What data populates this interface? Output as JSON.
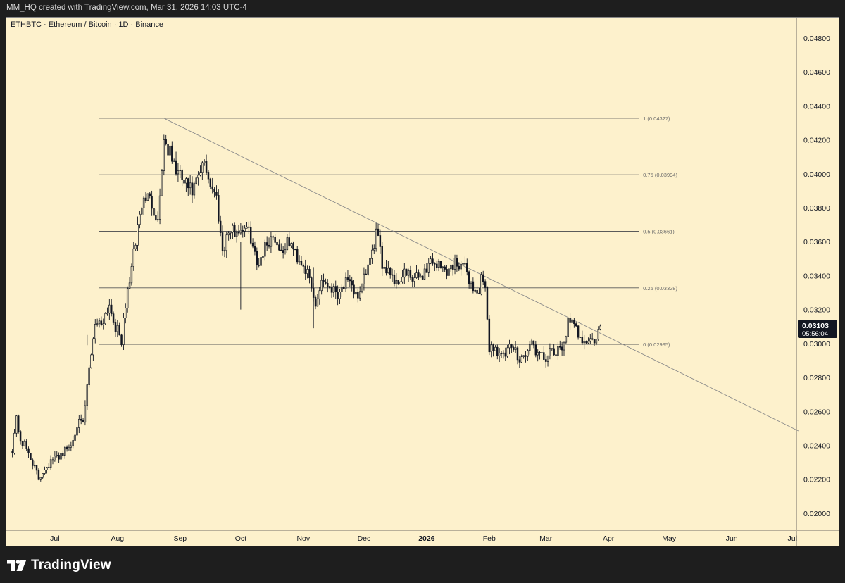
{
  "header": {
    "caption": "MM_HQ created with TradingView.com, Mar 31, 2026 14:03 UTC-4"
  },
  "symbol": {
    "label": "ETHBTC · Ethereum / Bitcoin · 1D · Binance"
  },
  "footer": {
    "brand": "TradingView"
  },
  "chart_data": {
    "type": "candlestick",
    "title": "ETHBTC · Ethereum / Bitcoin · 1D · Binance",
    "ylim": [
      0.019,
      0.0492
    ],
    "y_ticks": [
      "0.02000",
      "0.02200",
      "0.02400",
      "0.02600",
      "0.02800",
      "0.03000",
      "0.03200",
      "0.03400",
      "0.03600",
      "0.03800",
      "0.04000",
      "0.04200",
      "0.04400",
      "0.04600",
      "0.04800"
    ],
    "x_labels": [
      {
        "day": 5,
        "label": "Jul",
        "bold": false
      },
      {
        "day": 36,
        "label": "Aug",
        "bold": false
      },
      {
        "day": 67,
        "label": "Sep",
        "bold": false
      },
      {
        "day": 97,
        "label": "Oct",
        "bold": false
      },
      {
        "day": 128,
        "label": "Nov",
        "bold": false
      },
      {
        "day": 158,
        "label": "Dec",
        "bold": false
      },
      {
        "day": 189,
        "label": "2026",
        "bold": true
      },
      {
        "day": 220,
        "label": "Feb",
        "bold": false
      },
      {
        "day": 248,
        "label": "Mar",
        "bold": false
      },
      {
        "day": 279,
        "label": "Apr",
        "bold": false
      },
      {
        "day": 309,
        "label": "May",
        "bold": false
      },
      {
        "day": 340,
        "label": "Jun",
        "bold": false
      },
      {
        "day": 370,
        "label": "Jul",
        "bold": false
      }
    ],
    "x_range_days": [
      -19,
      372
    ],
    "fib_levels": [
      {
        "level": "1",
        "price": 0.04327,
        "label": "1 (0.04327)"
      },
      {
        "level": "0.75",
        "price": 0.03994,
        "label": "0.75 (0.03994)"
      },
      {
        "level": "0.5",
        "price": 0.03661,
        "label": "0.5 (0.03661)"
      },
      {
        "level": "0.25",
        "price": 0.03328,
        "label": "0.25 (0.03328)"
      },
      {
        "level": "0",
        "price": 0.02995,
        "label": "0 (0.02995)"
      }
    ],
    "fib_start_day": 27,
    "fib_end_day": 294,
    "trendline": {
      "start_day": 59,
      "start_price": 0.04327,
      "end_day": 373,
      "end_price": 0.02485
    },
    "last_price": {
      "value": "0.03103",
      "countdown": "05:56:04"
    },
    "anchors": [
      [
        -16,
        0.0238
      ],
      [
        -14,
        0.0256
      ],
      [
        -12,
        0.0243
      ],
      [
        -9,
        0.0238
      ],
      [
        -6,
        0.023
      ],
      [
        -3,
        0.022
      ],
      [
        0,
        0.0227
      ],
      [
        4,
        0.0231
      ],
      [
        9,
        0.0236
      ],
      [
        13,
        0.024
      ],
      [
        16,
        0.0253
      ],
      [
        19,
        0.0252
      ],
      [
        22,
        0.0285
      ],
      [
        25,
        0.0313
      ],
      [
        28,
        0.0312
      ],
      [
        32,
        0.0323
      ],
      [
        35,
        0.031
      ],
      [
        38,
        0.0302
      ],
      [
        41,
        0.0331
      ],
      [
        44,
        0.0352
      ],
      [
        47,
        0.0377
      ],
      [
        50,
        0.0387
      ],
      [
        53,
        0.0383
      ],
      [
        56,
        0.0372
      ],
      [
        59,
        0.042
      ],
      [
        62,
        0.0412
      ],
      [
        65,
        0.0402
      ],
      [
        69,
        0.0395
      ],
      [
        73,
        0.0389
      ],
      [
        76,
        0.0397
      ],
      [
        79,
        0.0407
      ],
      [
        82,
        0.0394
      ],
      [
        85,
        0.0386
      ],
      [
        88,
        0.0355
      ],
      [
        91,
        0.0366
      ],
      [
        95,
        0.0366
      ],
      [
        99,
        0.0369
      ],
      [
        102,
        0.0363
      ],
      [
        105,
        0.0346
      ],
      [
        109,
        0.0357
      ],
      [
        113,
        0.0364
      ],
      [
        117,
        0.0354
      ],
      [
        121,
        0.036
      ],
      [
        125,
        0.0351
      ],
      [
        128,
        0.0347
      ],
      [
        131,
        0.0337
      ],
      [
        134,
        0.0322
      ],
      [
        137,
        0.0338
      ],
      [
        141,
        0.0334
      ],
      [
        145,
        0.033
      ],
      [
        149,
        0.0336
      ],
      [
        153,
        0.0331
      ],
      [
        156,
        0.0328
      ],
      [
        159,
        0.0342
      ],
      [
        162,
        0.0352
      ],
      [
        164,
        0.0366
      ],
      [
        167,
        0.0347
      ],
      [
        171,
        0.0343
      ],
      [
        174,
        0.0335
      ],
      [
        178,
        0.0342
      ],
      [
        182,
        0.0337
      ],
      [
        185,
        0.0339
      ],
      [
        188,
        0.0342
      ],
      [
        191,
        0.0349
      ],
      [
        194,
        0.0347
      ],
      [
        197,
        0.0344
      ],
      [
        200,
        0.0343
      ],
      [
        203,
        0.0348
      ],
      [
        206,
        0.0347
      ],
      [
        209,
        0.0342
      ],
      [
        212,
        0.0332
      ],
      [
        215,
        0.033
      ],
      [
        216,
        0.0338
      ],
      [
        218,
        0.033
      ],
      [
        220,
        0.0298
      ],
      [
        223,
        0.0297
      ],
      [
        227,
        0.0292
      ],
      [
        231,
        0.0298
      ],
      [
        235,
        0.0292
      ],
      [
        238,
        0.0293
      ],
      [
        241,
        0.0301
      ],
      [
        244,
        0.0293
      ],
      [
        247,
        0.0291
      ],
      [
        250,
        0.0294
      ],
      [
        253,
        0.0294
      ],
      [
        256,
        0.0297
      ],
      [
        259,
        0.0312
      ],
      [
        262,
        0.031
      ],
      [
        265,
        0.0304
      ],
      [
        268,
        0.0302
      ],
      [
        271,
        0.0301
      ],
      [
        273,
        0.0303
      ],
      [
        275,
        0.031
      ]
    ]
  }
}
